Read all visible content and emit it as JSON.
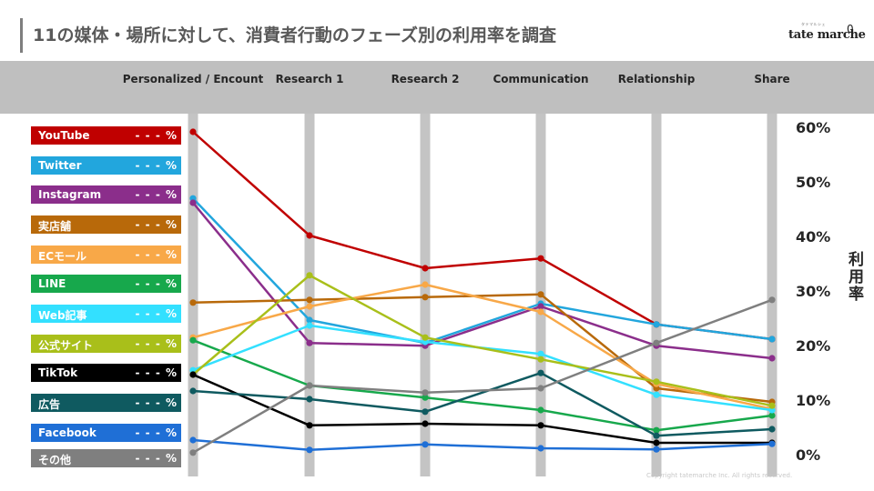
{
  "page": {
    "title": "11の媒体・場所に対して、消費者行動のフェーズ別の利用率を調査",
    "logo_text": "tate marche",
    "logo_tagline": "タテマルシェ",
    "logo_symbol": "0",
    "copyright": "Copyright tatemarche Inc. All rights reserved."
  },
  "chart_data": {
    "type": "line",
    "title": "",
    "ylabel": "利用率",
    "ylim": [
      0,
      60
    ],
    "yticks": [
      "60%",
      "50%",
      "40%",
      "30%",
      "20%",
      "10%",
      "0%"
    ],
    "ytick_values": [
      60,
      50,
      40,
      30,
      20,
      10,
      0
    ],
    "categories": [
      "Personalized / Encount",
      "Research 1",
      "Research 2",
      "Communication",
      "Relationship",
      "Share"
    ],
    "grid": "vertical gray bars at each category",
    "legend_placement": "left",
    "series": [
      {
        "name": "YouTube",
        "pct_label": "- - - %",
        "color": "#c00000",
        "values": [
          59.5,
          40.5,
          34.5,
          36.3,
          24.2,
          21.5
        ]
      },
      {
        "name": "Twitter",
        "pct_label": "- - - %",
        "color": "#22a6dd",
        "values": [
          47.3,
          25.0,
          20.8,
          28.0,
          24.2,
          21.5
        ]
      },
      {
        "name": "Instagram",
        "pct_label": "- - - %",
        "color": "#8b2e8b",
        "values": [
          46.5,
          20.8,
          20.3,
          27.5,
          20.3,
          18.0
        ]
      },
      {
        "name": "実店舗",
        "pct_label": "- - - %",
        "color": "#b8690a",
        "values": [
          28.2,
          28.7,
          29.2,
          29.7,
          12.5,
          10.0
        ]
      },
      {
        "name": "ECモール",
        "pct_label": "- - - %",
        "color": "#f8a848",
        "values": [
          21.8,
          27.5,
          31.5,
          26.5,
          13.3,
          8.7
        ]
      },
      {
        "name": "LINE",
        "pct_label": "- - - %",
        "color": "#17a84c",
        "values": [
          21.3,
          13.0,
          10.8,
          8.5,
          4.8,
          7.5
        ]
      },
      {
        "name": "Web記事",
        "pct_label": "- - - %",
        "color": "#33e0ff",
        "values": [
          15.8,
          24.0,
          21.0,
          18.8,
          11.3,
          8.5
        ]
      },
      {
        "name": "公式サイト",
        "pct_label": "- - - %",
        "color": "#a9bf1a",
        "values": [
          15.0,
          33.2,
          21.8,
          17.8,
          13.7,
          9.3
        ]
      },
      {
        "name": "TikTok",
        "pct_label": "- - - %",
        "color": "#000000",
        "values": [
          15.0,
          5.7,
          6.0,
          5.7,
          2.5,
          2.5
        ]
      },
      {
        "name": "広告",
        "pct_label": "- - - %",
        "color": "#0f5a60",
        "values": [
          12.0,
          10.5,
          8.2,
          15.3,
          3.8,
          5.0
        ]
      },
      {
        "name": "Facebook",
        "pct_label": "- - - %",
        "color": "#1f6fd6",
        "values": [
          3.0,
          1.2,
          2.2,
          1.5,
          1.3,
          2.3
        ]
      },
      {
        "name": "その他",
        "pct_label": "- - - %",
        "color": "#7f7f7f",
        "values": [
          0.7,
          13.0,
          11.7,
          12.5,
          20.8,
          28.7
        ]
      }
    ]
  }
}
